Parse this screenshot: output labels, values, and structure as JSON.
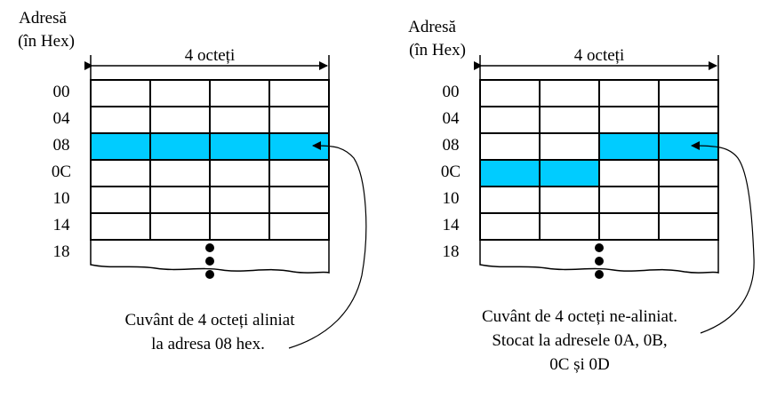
{
  "colors": {
    "highlight": "#00ccff",
    "line": "#000000",
    "background": "#ffffff"
  },
  "left": {
    "address_title_line1": "Adresă",
    "address_title_line2": "(în Hex)",
    "width_label": "4 octeți",
    "addresses": [
      "00",
      "04",
      "08",
      "0C",
      "10",
      "14",
      "18"
    ],
    "highlighted_cells": [
      [
        2,
        0
      ],
      [
        2,
        1
      ],
      [
        2,
        2
      ],
      [
        2,
        3
      ]
    ],
    "caption_line1": "Cuvânt de 4 octeți aliniat",
    "caption_line2": "la adresa 08 hex."
  },
  "right": {
    "address_title_line1": "Adresă",
    "address_title_line2": "(în Hex)",
    "width_label": "4 octeți",
    "addresses": [
      "00",
      "04",
      "08",
      "0C",
      "10",
      "14",
      "18"
    ],
    "highlighted_cells": [
      [
        2,
        2
      ],
      [
        2,
        3
      ],
      [
        3,
        0
      ],
      [
        3,
        1
      ]
    ],
    "caption_line1": "Cuvânt de 4 octeți ne-aliniat.",
    "caption_line2": "Stocat la adresele 0A, 0B,",
    "caption_line3": "0C și 0D"
  }
}
